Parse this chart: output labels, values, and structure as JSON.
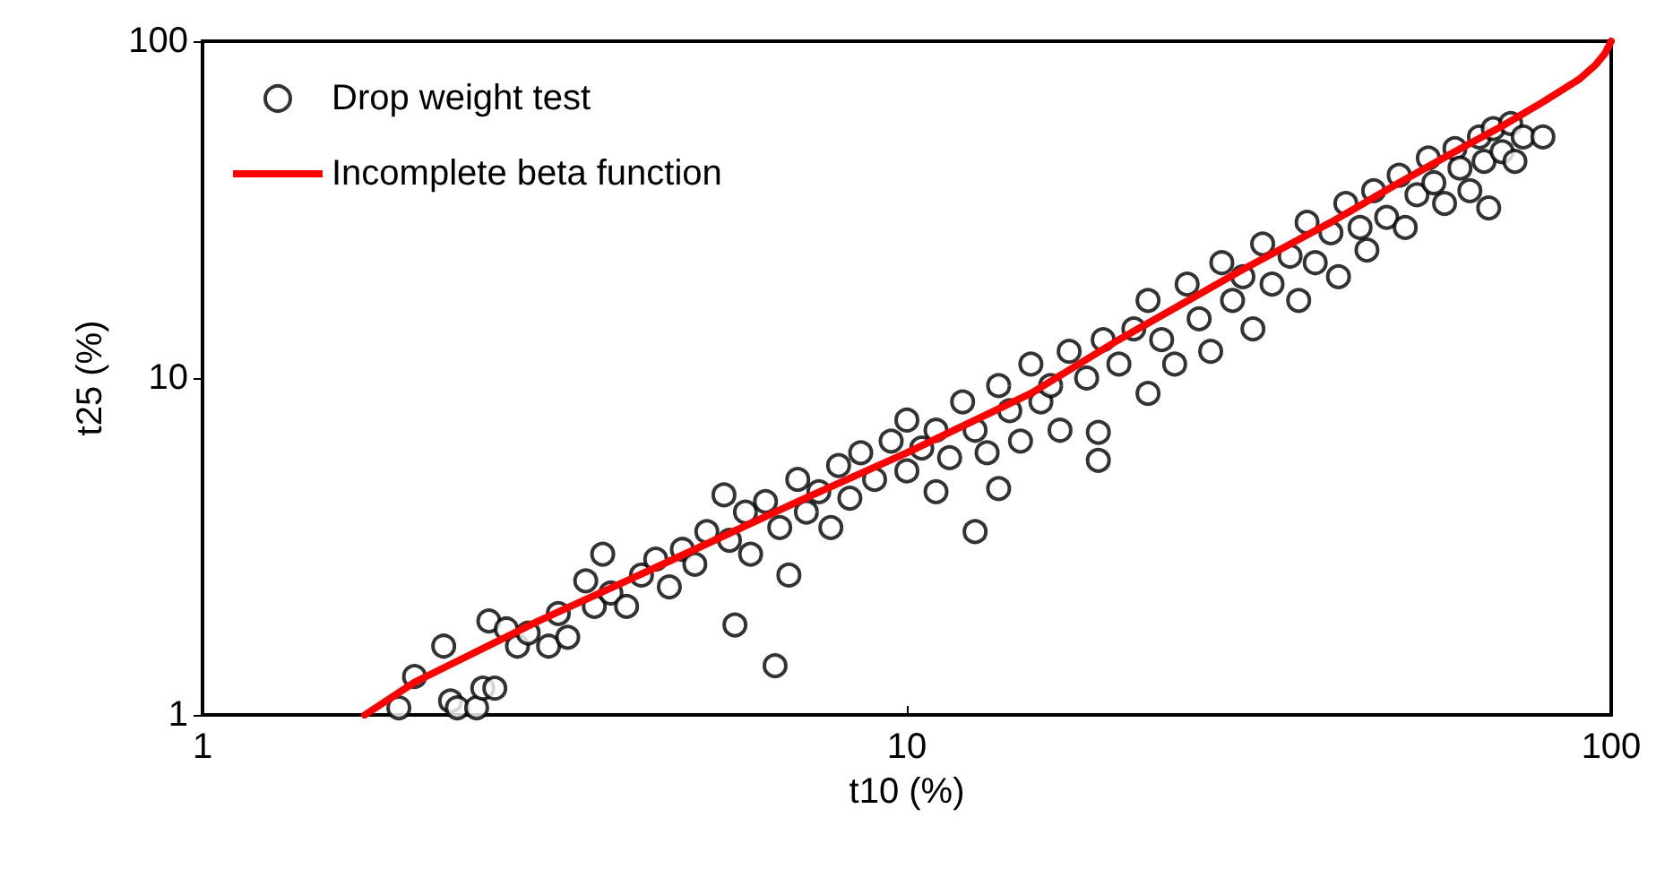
{
  "chart_data": {
    "type": "scatter",
    "xlabel": "t10 (%)",
    "ylabel": "t25 (%)",
    "log": "xy",
    "xlim": [
      1,
      100
    ],
    "ylim": [
      1,
      100
    ],
    "xticks": [
      1,
      10,
      100
    ],
    "yticks": [
      1,
      10,
      100
    ],
    "grid": false,
    "legend": "top left",
    "marker": "circle",
    "series": [
      {
        "name": "Drop weight test",
        "color": "#000000",
        "x": [
          1.9,
          2.0,
          2.2,
          2.25,
          2.3,
          2.45,
          2.5,
          2.55,
          2.6,
          2.7,
          2.8,
          2.9,
          3.1,
          3.2,
          3.3,
          3.5,
          3.6,
          3.7,
          3.8,
          4.0,
          4.2,
          4.4,
          4.6,
          4.8,
          5.0,
          5.2,
          5.5,
          5.6,
          5.7,
          5.9,
          6.0,
          6.3,
          6.5,
          6.6,
          6.8,
          7.0,
          7.2,
          7.5,
          7.8,
          8.0,
          8.3,
          8.6,
          9.0,
          9.5,
          10,
          10,
          10.5,
          11,
          11,
          11.5,
          12,
          12.5,
          12.5,
          13,
          13.5,
          13.5,
          14,
          14.5,
          15,
          15.5,
          16,
          16.5,
          17,
          18,
          18.7,
          18.7,
          19,
          20,
          21,
          22,
          22,
          23,
          24,
          25,
          26,
          27,
          28,
          29,
          30,
          31,
          32,
          33,
          35,
          36,
          37,
          38,
          40,
          41,
          42,
          44,
          45,
          46,
          48,
          50,
          51,
          53,
          55,
          56,
          58,
          60,
          61,
          63,
          65,
          66,
          67,
          68,
          70,
          72,
          73,
          75,
          80
        ],
        "values": [
          1.05,
          1.3,
          1.6,
          1.1,
          1.05,
          1.05,
          1.2,
          1.9,
          1.2,
          1.8,
          1.6,
          1.75,
          1.6,
          2.0,
          1.7,
          2.5,
          2.1,
          3.0,
          2.3,
          2.1,
          2.6,
          2.9,
          2.4,
          3.1,
          2.8,
          3.5,
          4.5,
          3.3,
          1.85,
          4.0,
          3.0,
          4.3,
          1.4,
          3.6,
          2.6,
          5.0,
          4.0,
          4.6,
          3.6,
          5.5,
          4.4,
          6.0,
          5.0,
          6.5,
          5.3,
          7.5,
          6.2,
          4.6,
          7.0,
          5.8,
          8.5,
          3.5,
          7.0,
          6.0,
          4.7,
          9.5,
          8.0,
          6.5,
          11,
          8.5,
          9.5,
          7.0,
          12,
          10,
          5.7,
          6.9,
          13,
          11,
          14,
          9.0,
          17,
          13,
          11,
          19,
          15,
          12,
          22,
          17,
          20,
          14,
          25,
          19,
          23,
          17,
          29,
          22,
          27,
          20,
          33,
          28,
          24,
          36,
          30,
          40,
          28,
          35,
          45,
          38,
          33,
          48,
          42,
          36,
          52,
          44,
          32,
          55,
          47,
          57,
          44,
          52,
          52
        ]
      },
      {
        "name": "Incomplete beta function",
        "type": "line",
        "marker": "none",
        "color": "#ff0000",
        "x": [
          1.7,
          2,
          3,
          4,
          5,
          7,
          10,
          15,
          20,
          30,
          40,
          50,
          60,
          70,
          80,
          90,
          95,
          98,
          100
        ],
        "values": [
          1,
          1.25,
          1.9,
          2.5,
          3.1,
          4.3,
          6,
          9,
          13,
          21,
          29,
          38,
          47,
          56,
          66,
          77,
          85,
          92,
          100
        ]
      }
    ]
  }
}
